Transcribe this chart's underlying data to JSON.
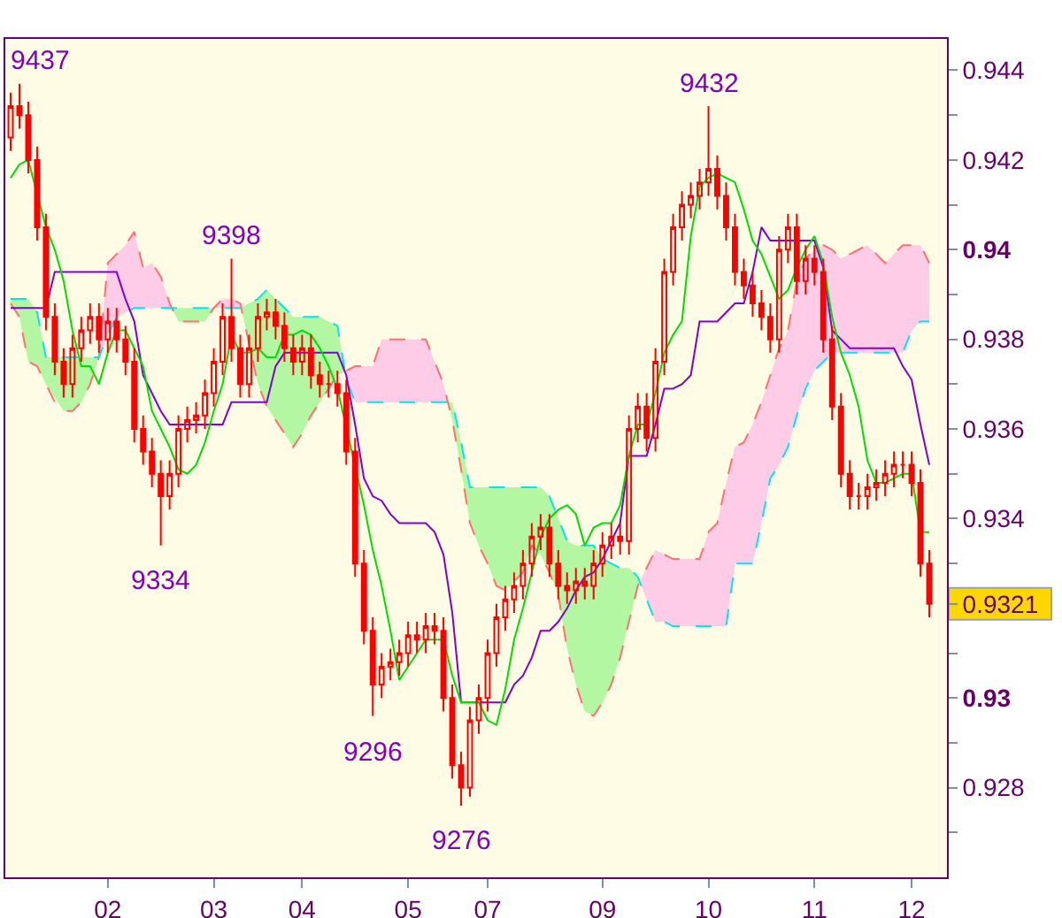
{
  "chart_data": {
    "type": "candlestick",
    "color": "#ff0000",
    "categories": [
      null,
      null,
      null,
      null,
      null,
      null,
      null,
      null,
      null,
      null,
      null,
      "02",
      null,
      null,
      null,
      null,
      null,
      null,
      null,
      null,
      null,
      null,
      null,
      "03",
      null,
      null,
      null,
      null,
      null,
      null,
      null,
      null,
      null,
      "04",
      null,
      null,
      null,
      null,
      null,
      null,
      null,
      null,
      null,
      null,
      null,
      "05",
      null,
      null,
      null,
      null,
      null,
      null,
      null,
      null,
      "07",
      null,
      null,
      null,
      null,
      null,
      null,
      null,
      null,
      null,
      null,
      null,
      null,
      "09",
      null,
      null,
      null,
      null,
      null,
      null,
      null,
      null,
      null,
      null,
      null,
      "10",
      null,
      null,
      null,
      null,
      null,
      null,
      null,
      null,
      null,
      null,
      null,
      "11",
      null,
      null,
      null,
      null,
      null,
      null,
      null,
      null,
      null,
      null,
      "12",
      null,
      null
    ],
    "ohlc": [
      [
        0.9425,
        0.9435,
        0.9422,
        0.9432
      ],
      [
        0.9432,
        0.9437,
        0.9427,
        0.943
      ],
      [
        0.943,
        0.9433,
        0.9417,
        0.942
      ],
      [
        0.942,
        0.9423,
        0.9402,
        0.9405
      ],
      [
        0.9405,
        0.9408,
        0.9382,
        0.9385
      ],
      [
        0.9385,
        0.9388,
        0.9372,
        0.9375
      ],
      [
        0.9375,
        0.9378,
        0.9367,
        0.937
      ],
      [
        0.937,
        0.9381,
        0.9367,
        0.9378
      ],
      [
        0.9378,
        0.9385,
        0.9375,
        0.9382
      ],
      [
        0.9382,
        0.9388,
        0.9379,
        0.9385
      ],
      [
        0.9385,
        0.9388,
        0.9377,
        0.938
      ],
      [
        0.938,
        0.9387,
        0.9377,
        0.9384
      ],
      [
        0.9384,
        0.9387,
        0.9377,
        0.938
      ],
      [
        0.938,
        0.9383,
        0.9372,
        0.9375
      ],
      [
        0.9375,
        0.9378,
        0.9357,
        0.936
      ],
      [
        0.936,
        0.9363,
        0.9352,
        0.9355
      ],
      [
        0.9355,
        0.9358,
        0.9347,
        0.935
      ],
      [
        0.935,
        0.9353,
        0.9334,
        0.9345
      ],
      [
        0.9345,
        0.9353,
        0.9342,
        0.935
      ],
      [
        0.935,
        0.9363,
        0.9347,
        0.936
      ],
      [
        0.936,
        0.9365,
        0.9357,
        0.9362
      ],
      [
        0.9362,
        0.9366,
        0.9359,
        0.9363
      ],
      [
        0.9363,
        0.9371,
        0.936,
        0.9368
      ],
      [
        0.9368,
        0.9378,
        0.9365,
        0.9375
      ],
      [
        0.9375,
        0.9388,
        0.9372,
        0.9385
      ],
      [
        0.9385,
        0.9398,
        0.9375,
        0.9378
      ],
      [
        0.9378,
        0.9381,
        0.9367,
        0.937
      ],
      [
        0.937,
        0.9381,
        0.9367,
        0.9378
      ],
      [
        0.9378,
        0.9388,
        0.9375,
        0.9385
      ],
      [
        0.9385,
        0.9389,
        0.9382,
        0.9386
      ],
      [
        0.9386,
        0.9389,
        0.938,
        0.9383
      ],
      [
        0.9383,
        0.9386,
        0.9375,
        0.9378
      ],
      [
        0.9378,
        0.9381,
        0.9372,
        0.9375
      ],
      [
        0.9375,
        0.9381,
        0.9372,
        0.9378
      ],
      [
        0.9378,
        0.9381,
        0.9369,
        0.9372
      ],
      [
        0.9372,
        0.9375,
        0.9367,
        0.937
      ],
      [
        0.937,
        0.9373,
        0.9367,
        0.937
      ],
      [
        0.937,
        0.9373,
        0.9365,
        0.9368
      ],
      [
        0.9368,
        0.9371,
        0.9352,
        0.9355
      ],
      [
        0.9355,
        0.9358,
        0.9327,
        0.933
      ],
      [
        0.933,
        0.9333,
        0.9312,
        0.9315
      ],
      [
        0.9315,
        0.9318,
        0.9296,
        0.9303
      ],
      [
        0.9303,
        0.931,
        0.93,
        0.9307
      ],
      [
        0.9307,
        0.9311,
        0.9304,
        0.9308
      ],
      [
        0.9308,
        0.9313,
        0.9305,
        0.931
      ],
      [
        0.931,
        0.9317,
        0.9307,
        0.9314
      ],
      [
        0.9314,
        0.9317,
        0.931,
        0.9313
      ],
      [
        0.9313,
        0.9319,
        0.931,
        0.9316
      ],
      [
        0.9316,
        0.9319,
        0.9312,
        0.9315
      ],
      [
        0.9315,
        0.9318,
        0.9297,
        0.93
      ],
      [
        0.93,
        0.9303,
        0.9282,
        0.9285
      ],
      [
        0.9285,
        0.9288,
        0.9276,
        0.928
      ],
      [
        0.928,
        0.9298,
        0.9278,
        0.9295
      ],
      [
        0.9295,
        0.9303,
        0.9292,
        0.93
      ],
      [
        0.93,
        0.9313,
        0.9297,
        0.931
      ],
      [
        0.931,
        0.9321,
        0.9307,
        0.9318
      ],
      [
        0.9318,
        0.9325,
        0.9315,
        0.9322
      ],
      [
        0.9322,
        0.9328,
        0.9319,
        0.9325
      ],
      [
        0.9325,
        0.9333,
        0.9322,
        0.933
      ],
      [
        0.933,
        0.9339,
        0.9327,
        0.9336
      ],
      [
        0.9336,
        0.9341,
        0.9333,
        0.9338
      ],
      [
        0.9338,
        0.9341,
        0.9327,
        0.933
      ],
      [
        0.933,
        0.9333,
        0.9322,
        0.9325
      ],
      [
        0.9325,
        0.9328,
        0.9321,
        0.9324
      ],
      [
        0.9324,
        0.9329,
        0.9321,
        0.9326
      ],
      [
        0.9326,
        0.9329,
        0.9322,
        0.9325
      ],
      [
        0.9325,
        0.9333,
        0.9322,
        0.933
      ],
      [
        0.933,
        0.9337,
        0.9327,
        0.9334
      ],
      [
        0.9334,
        0.9339,
        0.9331,
        0.9336
      ],
      [
        0.9336,
        0.9339,
        0.9332,
        0.9335
      ],
      [
        0.9335,
        0.9363,
        0.9332,
        0.936
      ],
      [
        0.936,
        0.9368,
        0.9357,
        0.9365
      ],
      [
        0.9365,
        0.9368,
        0.9355,
        0.9358
      ],
      [
        0.9358,
        0.9378,
        0.9355,
        0.9375
      ],
      [
        0.9375,
        0.9398,
        0.9372,
        0.9395
      ],
      [
        0.9395,
        0.9408,
        0.9392,
        0.9405
      ],
      [
        0.9405,
        0.9413,
        0.9402,
        0.941
      ],
      [
        0.941,
        0.9415,
        0.9407,
        0.9412
      ],
      [
        0.9412,
        0.9418,
        0.9409,
        0.9415
      ],
      [
        0.9415,
        0.9432,
        0.9412,
        0.9418
      ],
      [
        0.9418,
        0.9421,
        0.9409,
        0.9412
      ],
      [
        0.9412,
        0.9415,
        0.9402,
        0.9405
      ],
      [
        0.9405,
        0.9408,
        0.9392,
        0.9395
      ],
      [
        0.9395,
        0.9398,
        0.9389,
        0.9392
      ],
      [
        0.9392,
        0.9395,
        0.9385,
        0.9388
      ],
      [
        0.9388,
        0.9391,
        0.9382,
        0.9385
      ],
      [
        0.9385,
        0.9388,
        0.9377,
        0.938
      ],
      [
        0.938,
        0.9403,
        0.9377,
        0.94
      ],
      [
        0.94,
        0.9408,
        0.9397,
        0.9405
      ],
      [
        0.9405,
        0.9408,
        0.939,
        0.9393
      ],
      [
        0.9393,
        0.9401,
        0.939,
        0.9398
      ],
      [
        0.9398,
        0.9401,
        0.9392,
        0.9395
      ],
      [
        0.9395,
        0.9398,
        0.9377,
        0.938
      ],
      [
        0.938,
        0.9383,
        0.9362,
        0.9365
      ],
      [
        0.9365,
        0.9368,
        0.9347,
        0.935
      ],
      [
        0.935,
        0.9353,
        0.9342,
        0.9345
      ],
      [
        0.9345,
        0.9348,
        0.9342,
        0.9345
      ],
      [
        0.9345,
        0.935,
        0.9342,
        0.9347
      ],
      [
        0.9347,
        0.9351,
        0.9344,
        0.9348
      ],
      [
        0.9348,
        0.9353,
        0.9345,
        0.935
      ],
      [
        0.935,
        0.9355,
        0.9347,
        0.9352
      ],
      [
        0.9352,
        0.9355,
        0.9349,
        0.9352
      ],
      [
        0.9352,
        0.9355,
        0.9345,
        0.9348
      ],
      [
        0.9348,
        0.9351,
        0.9327,
        0.933
      ],
      [
        0.933,
        0.9333,
        0.9318,
        0.9321
      ]
    ],
    "series": [
      {
        "type": "line",
        "color": "#ff7070",
        "line_style": "dashed",
        "values": [
          0.9388,
          0.9385,
          0.9375,
          0.9374,
          0.937,
          0.9366,
          0.9364,
          0.9364,
          0.9366,
          0.937,
          0.9376,
          0.9397,
          0.9399,
          0.9401,
          0.9404,
          0.9396,
          0.9397,
          0.9394,
          0.9388,
          0.9384,
          0.9384,
          0.9384,
          0.9384,
          0.9387,
          0.9389,
          0.9389,
          0.9388,
          0.9379,
          0.937,
          0.9365,
          0.9362,
          0.9359,
          0.9356,
          0.9359,
          0.9363,
          0.9366,
          0.9369,
          0.9372,
          0.9373,
          0.9374,
          0.9374,
          0.9374,
          0.938,
          0.938,
          0.938,
          0.938,
          0.938,
          0.938,
          0.9375,
          0.937,
          0.9362,
          0.9351,
          0.9339,
          0.9334,
          0.933,
          0.9325,
          0.9324,
          0.9326,
          0.9328,
          0.9334,
          0.9332,
          0.9328,
          0.9323,
          0.9311,
          0.9303,
          0.9297,
          0.9296,
          0.9299,
          0.9303,
          0.9309,
          0.9317,
          0.9325,
          0.9329,
          0.9333,
          0.9332,
          0.9331,
          0.9331,
          0.9331,
          0.9331,
          0.9337,
          0.9339,
          0.9348,
          0.9356,
          0.9357,
          0.9361,
          0.9366,
          0.9372,
          0.9378,
          0.9382,
          0.9393,
          0.9398,
          0.94,
          0.9401,
          0.94,
          0.9398,
          0.9399,
          0.94,
          0.9401,
          0.9399,
          0.9397,
          0.9399,
          0.9401,
          0.9401,
          0.9401,
          0.9397
        ]
      },
      {
        "type": "line",
        "color": "#00e5ee",
        "line_style": "dashed",
        "values": [
          0.9389,
          0.9389,
          0.9389,
          0.9386,
          0.9376,
          null,
          0.9376,
          0.9376,
          0.9376,
          0.9376,
          0.9376,
          0.9381,
          0.9385,
          0.9386,
          0.9387,
          0.9387,
          0.9387,
          0.9387,
          0.9387,
          0.9387,
          0.9387,
          0.9387,
          0.9387,
          0.9387,
          0.9387,
          0.9387,
          0.9387,
          0.9388,
          0.9389,
          0.9391,
          0.9389,
          0.9387,
          0.9385,
          0.9385,
          0.9385,
          0.9385,
          0.9384,
          0.9383,
          0.9371,
          0.9366,
          0.9366,
          0.9366,
          0.9366,
          0.9366,
          0.9366,
          0.9366,
          0.9366,
          0.9366,
          0.9366,
          0.9366,
          0.9366,
          0.9357,
          0.9347,
          0.9347,
          0.9347,
          0.9347,
          0.9347,
          0.9347,
          0.9347,
          0.9347,
          0.9347,
          0.9345,
          0.934,
          0.9335,
          0.9334,
          0.9334,
          0.9334,
          0.9331,
          0.933,
          0.9329,
          0.9329,
          0.9327,
          0.9322,
          0.9317,
          0.9317,
          0.9316,
          0.9316,
          0.9316,
          0.9316,
          0.9316,
          0.9316,
          0.9316,
          0.933,
          0.933,
          0.933,
          0.9339,
          0.9349,
          0.9352,
          0.9356,
          0.9363,
          0.9369,
          0.9373,
          0.9375,
          0.9377,
          0.9377,
          0.9377,
          0.9377,
          0.9377,
          0.9377,
          0.9377,
          0.9377,
          0.9377,
          0.9382,
          0.9384,
          0.9384
        ]
      },
      {
        "type": "line",
        "color": "#8000d0",
        "line_style": "solid",
        "values": [
          0.9387,
          0.9387,
          0.9387,
          0.9387,
          0.9387,
          0.9395,
          0.9395,
          0.9395,
          0.9395,
          0.9395,
          0.9395,
          0.9395,
          0.9395,
          0.9389,
          0.9384,
          0.9372,
          0.9368,
          0.9364,
          0.9361,
          0.9361,
          0.9361,
          0.9361,
          0.9361,
          0.9361,
          0.9361,
          0.9366,
          0.9366,
          0.9366,
          0.9366,
          0.9366,
          0.9374,
          0.9377,
          0.9377,
          0.9377,
          0.9377,
          0.9377,
          0.9377,
          0.9377,
          0.9372,
          0.9361,
          0.9349,
          0.9345,
          0.9344,
          0.9341,
          0.9339,
          0.9339,
          0.9339,
          0.9339,
          0.9337,
          0.9332,
          0.9319,
          0.9299,
          0.9299,
          0.9299,
          0.9299,
          0.9299,
          0.9299,
          0.9303,
          0.9305,
          0.9309,
          0.9315,
          0.9315,
          0.9317,
          0.932,
          0.9324,
          0.9327,
          0.9328,
          0.9331,
          0.9335,
          0.9339,
          0.9354,
          0.9354,
          0.9354,
          0.9361,
          0.9369,
          0.9369,
          0.937,
          0.9372,
          0.9384,
          0.9384,
          0.9384,
          0.9386,
          0.9388,
          0.9388,
          0.9395,
          0.9405,
          0.9402,
          0.9402,
          0.9402,
          0.9402,
          0.9402,
          0.9402,
          0.9396,
          0.9382,
          0.938,
          0.9378,
          0.9378,
          0.9378,
          0.9378,
          0.9378,
          0.9378,
          0.9374,
          0.9371,
          0.9361,
          0.9352
        ]
      },
      {
        "type": "line",
        "color": "#00dd00",
        "line_style": "solid",
        "values": [
          0.9416,
          0.9419,
          0.942,
          null,
          0.9405,
          0.94,
          0.9393,
          0.9382,
          0.9374,
          0.9374,
          0.937,
          0.9377,
          0.9382,
          0.9382,
          0.9378,
          0.9374,
          0.9364,
          0.936,
          0.9356,
          0.9351,
          0.935,
          0.9352,
          0.9357,
          0.9364,
          0.937,
          0.9381,
          0.9377,
          0.9377,
          0.9378,
          0.9376,
          0.9376,
          0.9381,
          0.9381,
          0.9382,
          0.9381,
          0.9378,
          0.9374,
          0.9369,
          null,
          null,
          0.9343,
          0.9333,
          0.9325,
          0.9315,
          0.9304,
          0.9307,
          0.931,
          0.9313,
          0.9313,
          0.9313,
          0.9305,
          0.9299,
          0.9299,
          0.9299,
          0.9295,
          0.9294,
          0.9302,
          0.9313,
          0.932,
          0.9328,
          0.9336,
          0.934,
          0.9342,
          0.9343,
          0.9341,
          0.9334,
          0.9338,
          0.9339,
          0.9339,
          0.9343,
          0.9354,
          0.9361,
          0.9361,
          0.9368,
          0.9377,
          0.9381,
          0.9384,
          0.9403,
          0.9414,
          0.9416,
          0.9417,
          0.9416,
          0.9415,
          0.9409,
          0.9402,
          0.9399,
          0.9394,
          0.9389,
          0.9391,
          0.9396,
          0.94,
          0.9403,
          0.9397,
          0.9385,
          0.9377,
          0.9372,
          0.9365,
          0.9353,
          0.9348,
          0.9348,
          0.9349,
          0.935,
          0.935,
          0.9337,
          0.9337
        ]
      }
    ],
    "ylim": [
      0.926,
      0.9447
    ],
    "yticks": [
      {
        "value": 0.927,
        "label": null
      },
      0.928,
      {
        "value": 0.929,
        "label": null
      },
      0.93,
      {
        "value": 0.931,
        "label": null
      },
      {
        "value": 0.9321,
        "label": "0.9321"
      },
      {
        "value": 0.933,
        "label": null
      },
      0.934,
      {
        "value": 0.935,
        "label": null
      },
      0.936,
      {
        "value": 0.937,
        "label": null
      },
      0.938,
      {
        "value": 0.939,
        "label": null
      },
      0.94,
      {
        "value": 0.941,
        "label": null
      },
      0.942,
      {
        "value": 0.943,
        "label": null
      },
      0.944
    ],
    "annotations": [
      "9437",
      "9334",
      "9398",
      "9296",
      "9276",
      "9432"
    ]
  }
}
